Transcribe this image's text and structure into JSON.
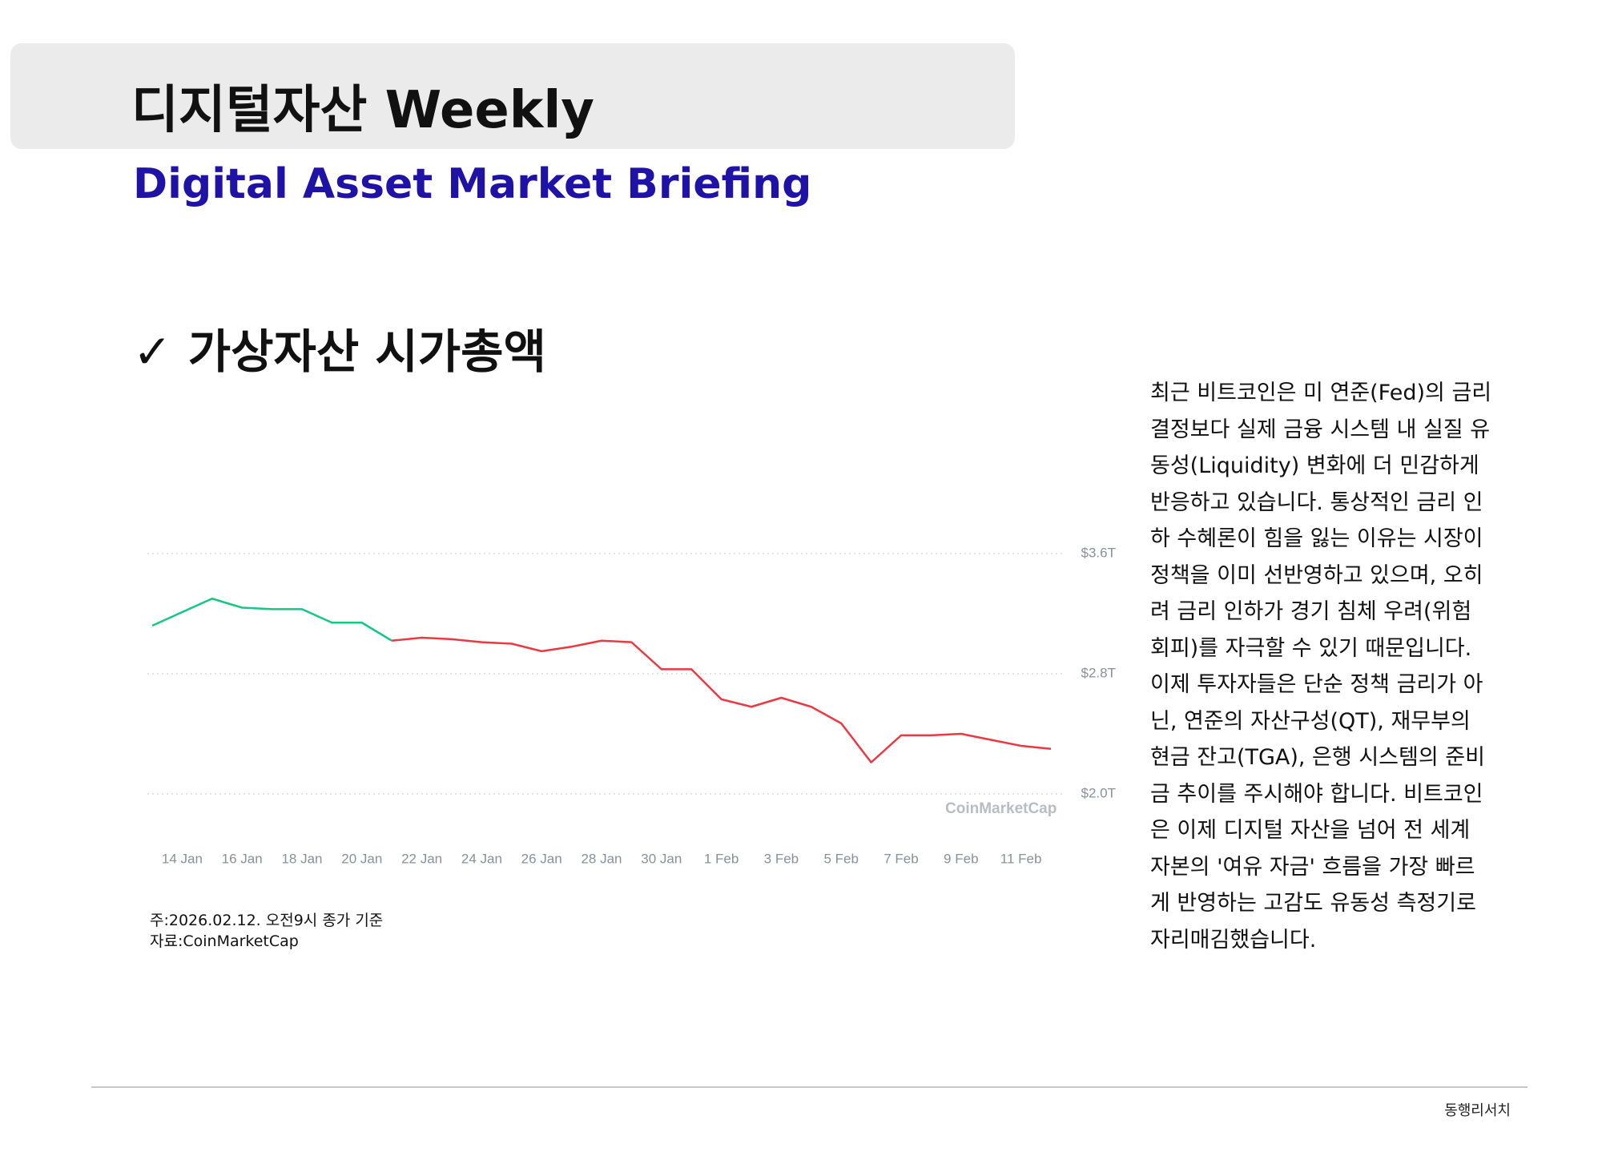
{
  "header": {
    "title": "디지털자산 Weekly",
    "subtitle": "Digital Asset Market Briefing"
  },
  "section": {
    "title": "✓ 가상자산 시가총액"
  },
  "chart_data": {
    "type": "line",
    "watermark": "CoinMarketCap",
    "categories": [
      null,
      "14 Jan",
      null,
      "16 Jan",
      null,
      "18 Jan",
      null,
      "20 Jan",
      null,
      "22 Jan",
      null,
      "24 Jan",
      null,
      "26 Jan",
      null,
      "28 Jan",
      null,
      "30 Jan",
      null,
      "1 Feb",
      null,
      "3 Feb",
      null,
      "5 Feb",
      null,
      "7 Feb",
      null,
      "9 Feb",
      null,
      "11 Feb",
      null
    ],
    "values": [
      3.12,
      3.21,
      3.3,
      3.24,
      3.23,
      3.23,
      3.14,
      3.14,
      3.02,
      3.04,
      3.03,
      3.01,
      3.0,
      2.95,
      2.98,
      3.02,
      3.01,
      2.83,
      2.83,
      2.63,
      2.58,
      2.64,
      2.58,
      2.47,
      2.21,
      2.39,
      2.39,
      2.4,
      2.36,
      2.32,
      2.3
    ],
    "colors": {
      "up": "#16c784",
      "down": "#ea3943"
    },
    "ylim": [
      2.0,
      3.6
    ],
    "yticks": [
      {
        "value": 3.6,
        "label": "$3.6T"
      },
      {
        "value": 2.8,
        "label": "$2.8T"
      },
      {
        "value": 2.0,
        "label": "$2.0T"
      }
    ],
    "grid": true
  },
  "notes": [
    "주:2026.02.12. 오전9시 종가 기준",
    "자료:CoinMarketCap"
  ],
  "body": {
    "lines": [
      "최근 비트코인은 미 연준(Fed)의 금리",
      "결정보다 실제 금융 시스템 내 실질 유",
      "동성(Liquidity) 변화에 더 민감하게",
      "반응하고 있습니다. 통상적인 금리 인",
      "하 수혜론이 힘을 잃는 이유는 시장이",
      "정책을 이미 선반영하고 있으며, 오히",
      "려 금리 인하가 경기 침체 우려(위험",
      "회피)를 자극할 수 있기 때문입니다.",
      "이제 투자자들은 단순 정책 금리가 아",
      "닌, 연준의 자산구성(QT), 재무부의",
      "현금 잔고(TGA), 은행 시스템의 준비",
      "금 추이를 주시해야 합니다. 비트코인",
      "은 이제 디지털 자산을 넘어 전 세계",
      "자본의 '여유 자금' 흐름을 가장 빠르",
      "게 반영하는 고감도 유동성 측정기로",
      "자리매김했습니다."
    ]
  },
  "footer": {
    "brand": "동행리서치"
  }
}
